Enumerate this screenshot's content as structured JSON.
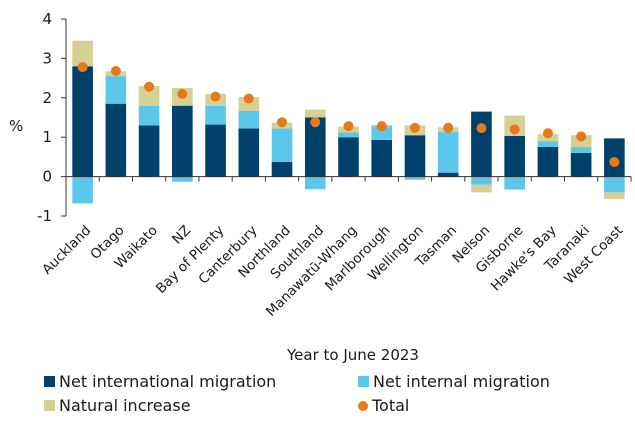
{
  "chart_data": {
    "type": "bar",
    "stacked": true,
    "categories": [
      "Auckland",
      "Otago",
      "Waikato",
      "NZ",
      "Bay of Plenty",
      "Canterbury",
      "Northland",
      "Southland",
      "Manawatū-Whang",
      "Marlborough",
      "Wellington",
      "Tasman",
      "Nelson",
      "Gisborne",
      "Hawke's Bay",
      "Taranaki",
      "West Coast"
    ],
    "series": [
      {
        "name": "Net international migration",
        "color": "#00416b",
        "values": [
          2.8,
          1.85,
          1.3,
          1.8,
          1.32,
          1.22,
          0.37,
          1.5,
          1.0,
          0.93,
          1.05,
          0.1,
          1.65,
          1.03,
          0.75,
          0.6,
          0.97
        ]
      },
      {
        "name": "Net internal migration",
        "color": "#5bc8eb",
        "values": [
          -0.68,
          0.7,
          0.5,
          -0.13,
          0.48,
          0.45,
          0.85,
          -0.32,
          0.12,
          0.35,
          -0.08,
          1.03,
          -0.2,
          -0.33,
          0.15,
          0.15,
          -0.4
        ]
      },
      {
        "name": "Natural increase",
        "color": "#d6cf96",
        "values": [
          0.65,
          0.12,
          0.5,
          0.45,
          0.3,
          0.35,
          0.15,
          0.2,
          0.15,
          0.03,
          0.25,
          0.12,
          -0.2,
          0.52,
          0.18,
          0.3,
          -0.17
        ]
      },
      {
        "name": "Total",
        "color": "#e8791b",
        "marker": "dot",
        "values": [
          2.78,
          2.68,
          2.28,
          2.1,
          2.03,
          1.98,
          1.38,
          1.38,
          1.28,
          1.28,
          1.24,
          1.24,
          1.23,
          1.2,
          1.1,
          1.02,
          0.37
        ]
      }
    ],
    "ylim": [
      -1,
      4
    ],
    "yticks": [
      "-1",
      "0",
      "1",
      "2",
      "3",
      "4"
    ],
    "ylabel": "%",
    "xlabel": "Year to June 2023",
    "legend_position": "bottom"
  }
}
